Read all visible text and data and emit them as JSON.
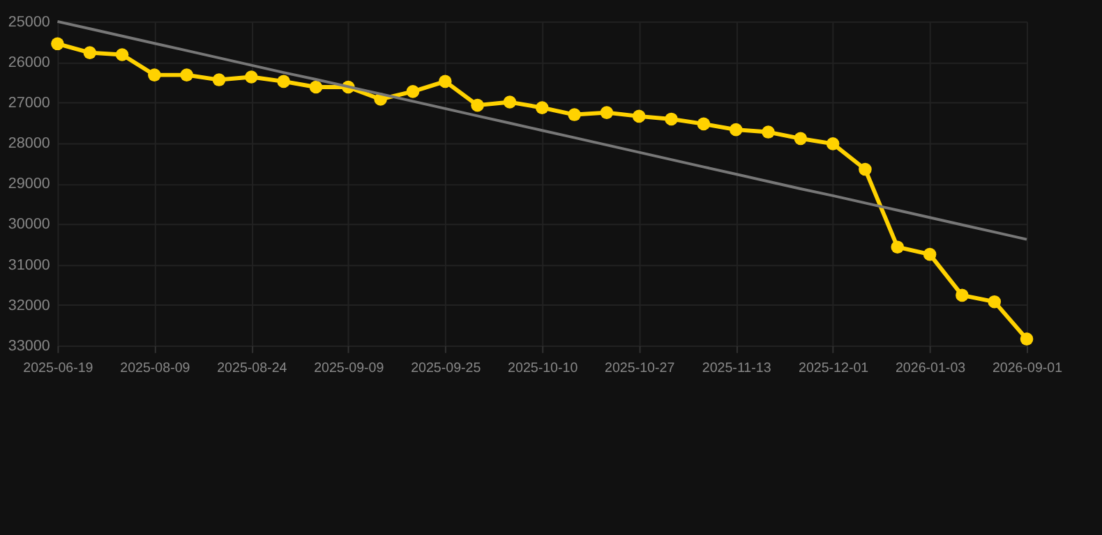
{
  "chart_data": {
    "type": "line",
    "categories": [
      "2025-06-19",
      null,
      null,
      "2025-08-09",
      null,
      null,
      "2025-08-24",
      null,
      null,
      "2025-09-09",
      null,
      null,
      "2025-09-25",
      null,
      null,
      "2025-10-10",
      null,
      null,
      "2025-10-27",
      null,
      null,
      "2025-11-13",
      null,
      null,
      "2025-12-01",
      null,
      null,
      "2026-01-03",
      null,
      null,
      "2026-09-01"
    ],
    "series": [
      {
        "color": "#ffd200",
        "marker": "circle",
        "values": [
          25550,
          25770,
          25820,
          26320,
          26320,
          26440,
          26370,
          26480,
          26620,
          26620,
          26920,
          26730,
          26480,
          27070,
          26990,
          27130,
          27300,
          27250,
          27340,
          27410,
          27530,
          27670,
          27730,
          27890,
          28020,
          28650,
          30570,
          30750,
          31760,
          31920,
          32840
        ]
      },
      {
        "color": "#777777",
        "marker": "none",
        "values": [
          25000,
          25180,
          25360,
          25540,
          25720,
          25900,
          26080,
          26260,
          26430,
          26610,
          26790,
          26970,
          27150,
          27330,
          27510,
          27690,
          27870,
          28050,
          28230,
          28410,
          28590,
          28770,
          28950,
          29130,
          29300,
          29480,
          29660,
          29840,
          30020,
          30200,
          30380
        ]
      }
    ],
    "ylim": [
      33000,
      25000
    ],
    "yticks": [
      25000,
      26000,
      27000,
      28000,
      29000,
      30000,
      31000,
      32000,
      33000
    ],
    "grid": true,
    "line_style": "solid"
  }
}
